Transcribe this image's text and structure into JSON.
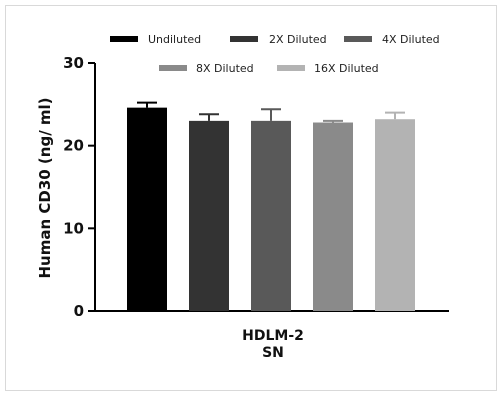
{
  "chart_data": {
    "type": "bar",
    "ylabel": "Human CD30 (ng/ ml)",
    "ylim": [
      0,
      30
    ],
    "yticks": [
      "0",
      "10",
      "20",
      "30"
    ],
    "category_label": [
      "HDLM-2",
      "SN"
    ],
    "grid": false,
    "legend_position": "top",
    "series": [
      {
        "name": "Undiluted",
        "value": 24.6,
        "error": 0.6,
        "color": "#000000"
      },
      {
        "name": "2X Diluted",
        "value": 23.0,
        "error": 0.8,
        "color": "#333333"
      },
      {
        "name": "4X Diluted",
        "value": 23.0,
        "error": 1.4,
        "color": "#595959"
      },
      {
        "name": "8X Diluted",
        "value": 22.8,
        "error": 0.2,
        "color": "#8a8a8a"
      },
      {
        "name": "16X Diluted",
        "value": 23.2,
        "error": 0.8,
        "color": "#b3b3b3"
      }
    ]
  }
}
